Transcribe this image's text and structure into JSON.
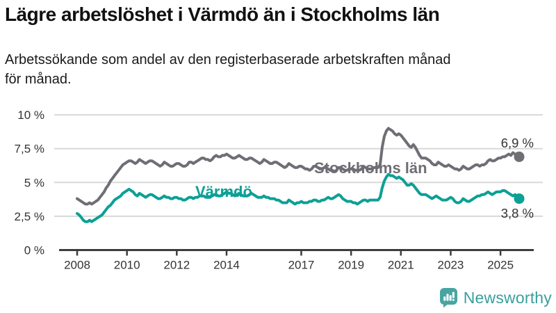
{
  "header": {
    "title": "Lägre arbetslöshet i Värmdö än i Stockholms län",
    "subtitle_line1": "Arbetssökande som andel av den registerbaserade arbetskraften månad",
    "subtitle_line2": "för månad."
  },
  "chart_data": {
    "type": "line",
    "unit": "%",
    "x_start": "2008-01",
    "x_end": "2025-10",
    "x_resolution": "monthly",
    "ylim": [
      0,
      10
    ],
    "y_ticks": [
      "0 %",
      "2,5 %",
      "5 %",
      "7,5 %",
      "10 %"
    ],
    "y_tick_values": [
      0,
      2.5,
      5,
      7.5,
      10
    ],
    "x_ticks": [
      2008,
      2010,
      2012,
      2014,
      2017,
      2019,
      2021,
      2023,
      2025
    ],
    "grid": "horizontal",
    "legend": "inline-labels-on-lines",
    "series": [
      {
        "id": "stockholms-lan",
        "name": "Stockholms län",
        "color": "#6e6e75",
        "end_label": "6,9 %",
        "end_value": 6.9,
        "values": [
          3.8,
          3.7,
          3.6,
          3.5,
          3.4,
          3.4,
          3.5,
          3.4,
          3.5,
          3.6,
          3.7,
          3.9,
          4.1,
          4.3,
          4.6,
          4.8,
          5.1,
          5.3,
          5.5,
          5.7,
          5.9,
          6.1,
          6.3,
          6.4,
          6.5,
          6.6,
          6.6,
          6.5,
          6.4,
          6.5,
          6.7,
          6.6,
          6.5,
          6.4,
          6.5,
          6.6,
          6.6,
          6.5,
          6.4,
          6.3,
          6.2,
          6.3,
          6.5,
          6.4,
          6.3,
          6.2,
          6.2,
          6.3,
          6.4,
          6.4,
          6.3,
          6.2,
          6.2,
          6.3,
          6.5,
          6.5,
          6.4,
          6.5,
          6.6,
          6.7,
          6.8,
          6.8,
          6.7,
          6.7,
          6.6,
          6.7,
          6.9,
          7.0,
          6.9,
          6.9,
          7.0,
          7.0,
          7.1,
          7.0,
          6.9,
          6.8,
          6.8,
          6.9,
          7.0,
          6.9,
          6.8,
          6.7,
          6.7,
          6.8,
          6.8,
          6.7,
          6.6,
          6.5,
          6.4,
          6.5,
          6.7,
          6.6,
          6.5,
          6.4,
          6.4,
          6.5,
          6.5,
          6.4,
          6.3,
          6.2,
          6.1,
          6.2,
          6.4,
          6.3,
          6.2,
          6.1,
          6.1,
          6.2,
          6.2,
          6.1,
          6.0,
          6.0,
          5.9,
          6.0,
          6.2,
          6.2,
          6.1,
          6.0,
          6.0,
          6.1,
          6.1,
          6.0,
          5.9,
          5.9,
          5.8,
          5.9,
          6.1,
          6.1,
          6.0,
          5.9,
          5.9,
          6.0,
          6.0,
          6.0,
          5.9,
          5.9,
          5.9,
          6.0,
          6.2,
          6.1,
          6.0,
          6.0,
          6.0,
          6.1,
          6.1,
          6.1,
          6.3,
          7.6,
          8.4,
          8.8,
          9.0,
          8.9,
          8.8,
          8.6,
          8.5,
          8.6,
          8.5,
          8.3,
          8.1,
          7.9,
          7.7,
          7.6,
          7.8,
          7.6,
          7.3,
          7.0,
          6.8,
          6.8,
          6.8,
          6.7,
          6.6,
          6.4,
          6.3,
          6.3,
          6.5,
          6.4,
          6.3,
          6.2,
          6.2,
          6.3,
          6.2,
          6.1,
          6.0,
          6.0,
          5.9,
          6.0,
          6.2,
          6.1,
          6.0,
          6.0,
          6.1,
          6.2,
          6.3,
          6.3,
          6.2,
          6.3,
          6.3,
          6.4,
          6.6,
          6.7,
          6.6,
          6.6,
          6.7,
          6.8,
          6.8,
          6.9,
          6.9,
          7.0,
          7.1,
          7.0,
          7.2,
          7.1,
          7.0,
          6.9
        ]
      },
      {
        "id": "varmdo",
        "name": "Värmdö",
        "color": "#0ca096",
        "end_label": "3,8 %",
        "end_value": 3.8,
        "values": [
          2.7,
          2.6,
          2.4,
          2.2,
          2.1,
          2.1,
          2.2,
          2.1,
          2.2,
          2.3,
          2.4,
          2.5,
          2.6,
          2.8,
          3.0,
          3.2,
          3.3,
          3.5,
          3.7,
          3.8,
          3.9,
          4.0,
          4.2,
          4.3,
          4.4,
          4.5,
          4.4,
          4.3,
          4.1,
          4.0,
          4.2,
          4.1,
          4.0,
          3.9,
          4.0,
          4.1,
          4.1,
          4.0,
          3.9,
          3.8,
          3.8,
          3.9,
          4.0,
          3.9,
          3.9,
          3.8,
          3.8,
          3.9,
          3.9,
          3.8,
          3.8,
          3.7,
          3.7,
          3.8,
          3.9,
          3.9,
          3.8,
          3.9,
          3.9,
          4.0,
          4.0,
          4.0,
          3.9,
          3.9,
          3.9,
          4.0,
          4.1,
          4.1,
          4.0,
          4.0,
          4.1,
          4.2,
          4.3,
          4.2,
          4.2,
          4.1,
          4.0,
          4.1,
          4.2,
          4.1,
          4.0,
          4.0,
          4.0,
          4.1,
          4.2,
          4.1,
          4.0,
          3.9,
          3.9,
          3.9,
          4.0,
          3.9,
          3.9,
          3.8,
          3.8,
          3.8,
          3.7,
          3.7,
          3.6,
          3.5,
          3.5,
          3.5,
          3.7,
          3.6,
          3.5,
          3.4,
          3.5,
          3.5,
          3.6,
          3.5,
          3.5,
          3.5,
          3.6,
          3.6,
          3.7,
          3.7,
          3.6,
          3.6,
          3.7,
          3.7,
          3.8,
          3.9,
          3.8,
          3.8,
          3.9,
          4.0,
          4.1,
          4.0,
          3.8,
          3.7,
          3.6,
          3.6,
          3.6,
          3.5,
          3.5,
          3.4,
          3.5,
          3.6,
          3.7,
          3.7,
          3.6,
          3.7,
          3.7,
          3.7,
          3.7,
          3.7,
          3.9,
          4.6,
          5.1,
          5.4,
          5.6,
          5.5,
          5.5,
          5.4,
          5.3,
          5.4,
          5.3,
          5.2,
          5.0,
          4.8,
          4.8,
          4.9,
          4.8,
          4.6,
          4.4,
          4.2,
          4.1,
          4.1,
          4.1,
          4.0,
          3.9,
          3.8,
          3.9,
          4.0,
          3.9,
          3.8,
          3.7,
          3.7,
          3.7,
          3.8,
          3.9,
          3.8,
          3.6,
          3.5,
          3.5,
          3.6,
          3.8,
          3.7,
          3.6,
          3.6,
          3.7,
          3.8,
          3.9,
          4.0,
          4.0,
          4.1,
          4.1,
          4.2,
          4.3,
          4.2,
          4.1,
          4.2,
          4.3,
          4.3,
          4.3,
          4.4,
          4.4,
          4.3,
          4.2,
          4.1,
          4.0,
          4.1,
          4.0,
          3.8
        ]
      }
    ]
  },
  "footer": {
    "brand": "Newsworthy",
    "brand_color": "#3a9e9e",
    "logo_icon": "bar-chart-speech-bubble"
  }
}
